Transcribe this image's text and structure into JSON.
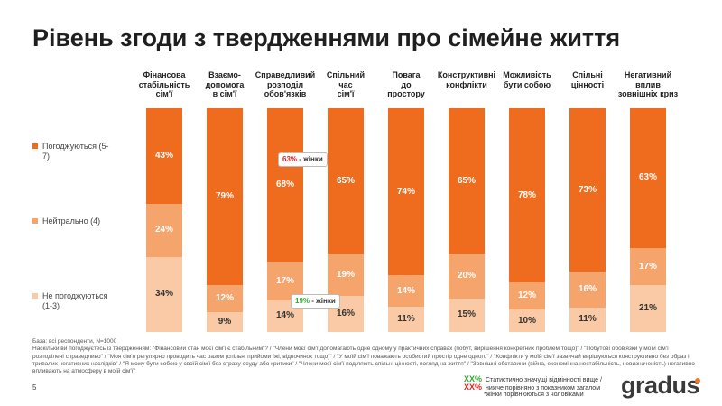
{
  "title": "Рівень згоди з твердженнями про сімейне життя",
  "legend": [
    {
      "label": "Погоджуються (5-7)",
      "color": "#ef6b1d"
    },
    {
      "label": "Нейтрально (4)",
      "color": "#f5a46b"
    },
    {
      "label": "Не погоджуються (1-3)",
      "color": "#f9caa5"
    }
  ],
  "chart_data": {
    "type": "bar",
    "stacked": true,
    "categories": [
      "Фінансова стабільність сім'ї",
      "Взаємо-допомога в сім'ї",
      "Справедливий розподіл обов'язків",
      "Спільний час сім'ї",
      "Повага до простору",
      "Конструктивні конфлікти",
      "Можливість бути собою",
      "Спільні цінності",
      "Негативний вплив зовнішніх криз"
    ],
    "category_lines": [
      [
        "Фінансова",
        "стабільність",
        "сім'ї"
      ],
      [
        "Взаємо-",
        "допомога",
        "в сім'ї"
      ],
      [
        "Справедливий",
        "розподіл",
        "обов'язків"
      ],
      [
        "Спільний",
        "час",
        "сім'ї"
      ],
      [
        "Повага",
        "до",
        "простору"
      ],
      [
        "Конструктивні",
        "конфлікти"
      ],
      [
        "Можливість",
        "бути собою"
      ],
      [
        "Спільні",
        "цінності"
      ],
      [
        "Негативний",
        "вплив",
        "зовнішніх криз"
      ]
    ],
    "series": [
      {
        "name": "Погоджуються (5-7)",
        "values": [
          43,
          79,
          68,
          65,
          74,
          65,
          78,
          73,
          63
        ],
        "color": "#ef6b1d"
      },
      {
        "name": "Нейтрально (4)",
        "values": [
          24,
          12,
          17,
          19,
          14,
          20,
          12,
          16,
          17
        ],
        "color": "#f5a46b"
      },
      {
        "name": "Не погоджуються (1-3)",
        "values": [
          34,
          9,
          14,
          16,
          11,
          15,
          10,
          11,
          21
        ],
        "color": "#f9caa5"
      }
    ],
    "value_suffix": "%",
    "annotations": [
      {
        "category": "Справедливий розподіл обов'язків",
        "series": "Погоджуються (5-7)",
        "value": "63%",
        "text": "- жінки",
        "significance": "lower",
        "color": "#e31f1f"
      },
      {
        "category": "Справедливий розподіл обов'язків",
        "series": "Не погоджуються (1-3)",
        "value": "19%",
        "text": "- жінки",
        "significance": "higher",
        "color": "#2fa82f"
      }
    ]
  },
  "footnote": {
    "base": "База: всі респонденти, N=1000",
    "question": "Наскільки ви погоджуєтесь із твердженням: \"Фінансовий стан моєї сім'ї є стабільним\"? / \"Члени моєї сім'ї допомагають одне одному у практичних справах (побут, вирішення конкретних проблем тощо)\" / \"Побутові обов'язки у моїй сім'ї розподілені справедливо\" / \"Моя сім'я регулярно проводить час разом (спільні прийоми їжі, відпочинок тощо)\" / \"У моїй сім'ї поважають особистий простір одне одного\" / \"Конфлікти у моїй сім'ї зазвичай вирішуються конструктивно без образ і тривалих негативних наслідків\" / \"Я можу бути собою у своїй сім'ї без страху осуду або критики\" / \"Члени моєї сім'ї поділяють спільні цінності, погляд на життя\" / \"Зовнішні обставини (війна, економічна нестабільність, невизначеність) негативно впливають на атмосферу в моїй сім'ї\""
  },
  "page_number": "5",
  "significance_legend": {
    "higher_mark": "ХХ%",
    "higher_text": "Статистично значущі відмінності вище /",
    "higher_color": "#2fa82f",
    "lower_mark": "ХХ%",
    "lower_text": "нижче порівняно з показником загалом",
    "lower_color": "#e31f1f",
    "note": "*жінки порівнюються з чоловіками"
  },
  "logo": "gradus"
}
